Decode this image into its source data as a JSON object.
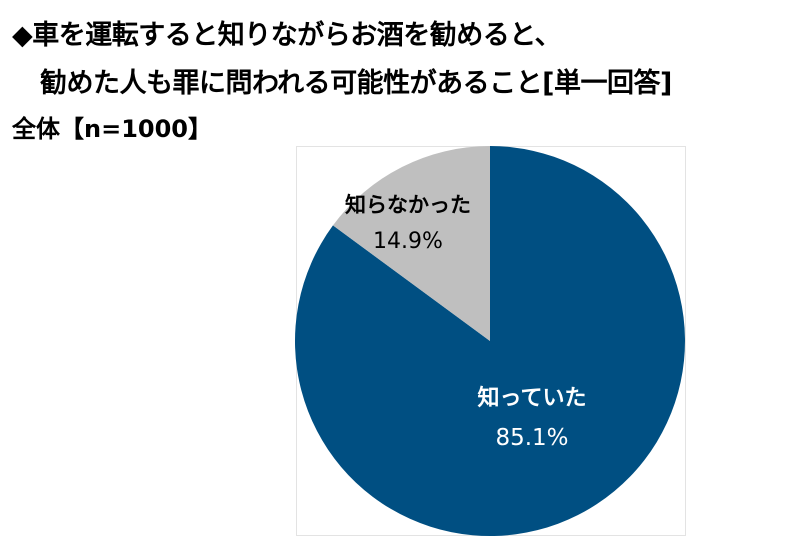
{
  "title": {
    "line1": "◆車を運転すると知りながらお酒を勧めると、",
    "line2": "勧めた人も罪に問われる可能性があること[単一回答]"
  },
  "subtitle": "全体【n=1000】",
  "chart_data": {
    "type": "pie",
    "start_angle": "12 o'clock",
    "direction": "clockwise",
    "series": [
      {
        "name": "知っていた",
        "value": 85.1,
        "value_label": "85.1%",
        "color": "#004f82",
        "label_color": "#ffffff"
      },
      {
        "name": "知らなかった",
        "value": 14.9,
        "value_label": "14.9%",
        "color": "#bfbfbf",
        "label_color": "#000000"
      }
    ]
  }
}
